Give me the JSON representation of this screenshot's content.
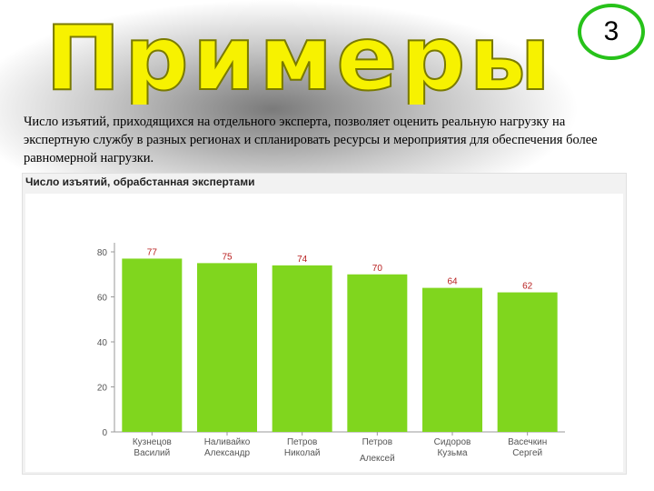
{
  "heading": {
    "text": "Примеры",
    "fill_color": "#f7f200",
    "stroke_color": "#7a7a00"
  },
  "badge": {
    "number": "3",
    "border_color": "#27c21a"
  },
  "description": "Число изъятий, приходящихся на отдельного эксперта, позволяет оценить реальную нагрузку на экспертную службу в разных регионах и спланировать ресурсы и мероприятия для обеспечения более равномерной нагрузки.",
  "chart_data": {
    "type": "bar",
    "title": "Число изъятий, обрабстанная экспертами",
    "categories": [
      "Кузнецов Василий",
      "Наливайко Александр",
      "Петров Николай",
      "Петров Алексей",
      "Сидоров Кузьма",
      "Васечкин Сергей"
    ],
    "category_lines": [
      [
        "Кузнецов",
        "Василий"
      ],
      [
        "Наливайко",
        "Александр"
      ],
      [
        "Петров",
        "Николай"
      ],
      [
        "Петров",
        "Алексей"
      ],
      [
        "Сидоров",
        "Кузьма"
      ],
      [
        "Васечкин",
        "Сергей"
      ]
    ],
    "values": [
      77,
      75,
      74,
      70,
      64,
      62
    ],
    "value_labels": [
      "77",
      "75",
      "74",
      "70",
      "64",
      "62"
    ],
    "ylim": [
      0,
      80
    ],
    "yticks": [
      "0",
      "20",
      "40",
      "60",
      "80"
    ],
    "grid": false,
    "legend": "none",
    "bar_color": "#80d61e",
    "value_label_color": "#b81f1f"
  }
}
